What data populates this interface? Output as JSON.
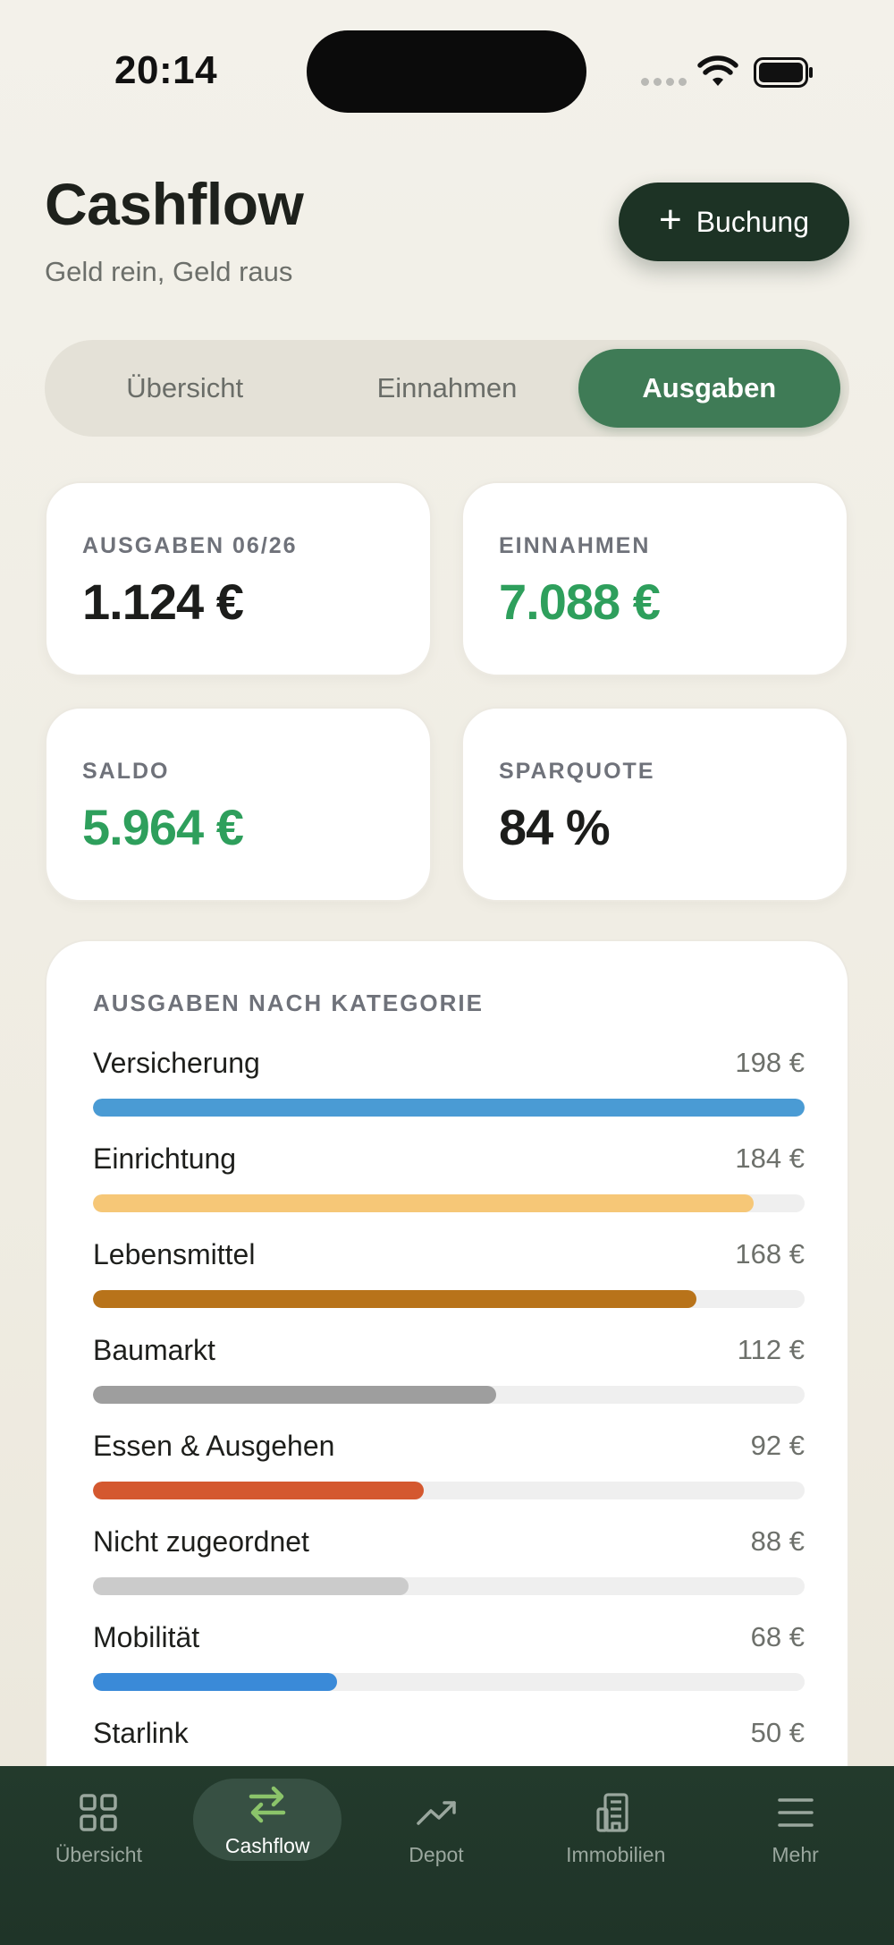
{
  "status_bar": {
    "time": "20:14"
  },
  "header": {
    "title": "Cashflow",
    "subtitle": "Geld rein, Geld raus",
    "add_button_label": "Buchung"
  },
  "tabs": [
    {
      "label": "Übersicht",
      "active": false
    },
    {
      "label": "Einnahmen",
      "active": false
    },
    {
      "label": "Ausgaben",
      "active": true
    }
  ],
  "stats": [
    {
      "label": "AUSGABEN 06/26",
      "value": "1.124 €"
    },
    {
      "label": "EINNAHMEN",
      "value": "7.088 €"
    },
    {
      "label": "SALDO",
      "value": "5.964 €"
    },
    {
      "label": "SPARQUOTE",
      "value": "84 %"
    }
  ],
  "categories_panel": {
    "title": "AUSGABEN NACH KATEGORIE",
    "items": [
      {
        "name": "Versicherung",
        "amount": "198 €",
        "fraction": 1.0,
        "color": "#4a9bd4"
      },
      {
        "name": "Einrichtung",
        "amount": "184 €",
        "fraction": 0.929,
        "color": "#f6c777"
      },
      {
        "name": "Lebensmittel",
        "amount": "168 €",
        "fraction": 0.848,
        "color": "#b8731a"
      },
      {
        "name": "Baumarkt",
        "amount": "112 €",
        "fraction": 0.566,
        "color": "#9e9e9e"
      },
      {
        "name": "Essen & Ausgehen",
        "amount": "92 €",
        "fraction": 0.465,
        "color": "#d4582f"
      },
      {
        "name": "Nicht zugeordnet",
        "amount": "88 €",
        "fraction": 0.444,
        "color": "#cbcbcb"
      },
      {
        "name": "Mobilität",
        "amount": "68 €",
        "fraction": 0.343,
        "color": "#3a8ad8"
      },
      {
        "name": "Starlink",
        "amount": "50 €",
        "fraction": 0.253,
        "color": "#777777"
      }
    ]
  },
  "bottom_nav": [
    {
      "label": "Übersicht",
      "icon": "grid-icon",
      "active": false
    },
    {
      "label": "Cashflow",
      "icon": "arrows-swap-icon",
      "active": true
    },
    {
      "label": "Depot",
      "icon": "trend-up-icon",
      "active": false
    },
    {
      "label": "Immobilien",
      "icon": "building-icon",
      "active": false
    },
    {
      "label": "Mehr",
      "icon": "menu-icon",
      "active": false
    }
  ]
}
